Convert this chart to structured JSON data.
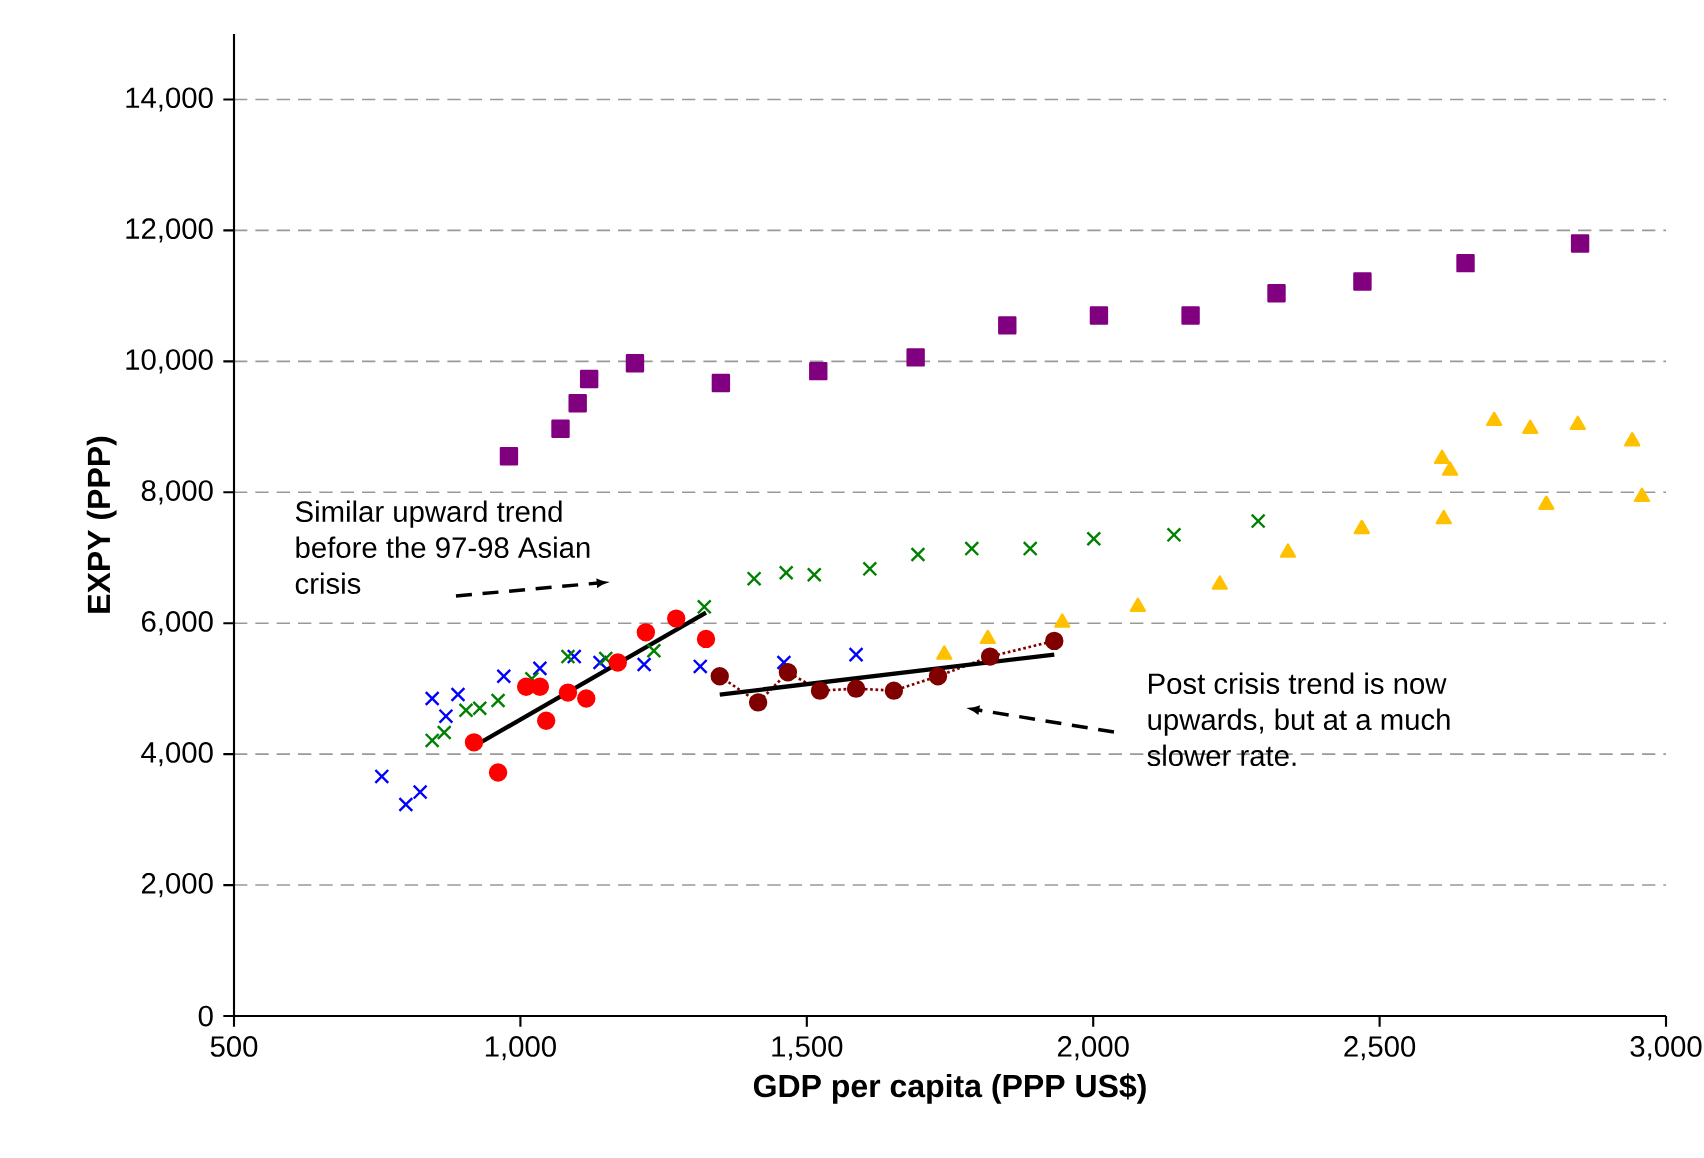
{
  "chart_data": {
    "type": "scatter",
    "xlabel": "GDP per capita (PPP US$)",
    "ylabel": "EXPY (PPP)",
    "xlim": [
      500,
      3000
    ],
    "ylim": [
      0,
      15000
    ],
    "xticks": [
      500,
      {
        "value": 1000,
        "label": "1,000"
      },
      {
        "value": 1500,
        "label": "1,500"
      },
      {
        "value": 2000,
        "label": "2,000"
      },
      {
        "value": 2500,
        "label": "2,500"
      },
      {
        "value": 3000,
        "label": "3,000"
      }
    ],
    "yticks": [
      0,
      {
        "value": 2000,
        "label": "2,000"
      },
      {
        "value": 4000,
        "label": "4,000"
      },
      {
        "value": 6000,
        "label": "6,000"
      },
      {
        "value": 8000,
        "label": "8,000"
      },
      {
        "value": 10000,
        "label": "10,000"
      },
      {
        "value": 12000,
        "label": "12,000"
      },
      {
        "value": 14000,
        "label": "14,000"
      }
    ],
    "grid": "y",
    "series": [
      {
        "marker": "cross",
        "color": "#0000ff",
        "x": [
          758,
          800,
          825,
          846,
          870,
          891,
          971,
          1034,
          1094,
          1139,
          1216,
          1314,
          1460,
          1586
        ],
        "values": [
          3660,
          3230,
          3420,
          4850,
          4580,
          4910,
          5190,
          5310,
          5490,
          5400,
          5370,
          5340,
          5400,
          5520
        ]
      },
      {
        "marker": "cross",
        "color": "#008000",
        "x": [
          846,
          867,
          905,
          929,
          961,
          1020,
          1083,
          1149,
          1233,
          1321,
          1408,
          1464,
          1513,
          1610,
          1694,
          1788,
          1890,
          2001,
          2141,
          2288
        ],
        "values": [
          4210,
          4330,
          4670,
          4700,
          4820,
          5150,
          5490,
          5460,
          5580,
          6250,
          6680,
          6770,
          6740,
          6830,
          7050,
          7140,
          7140,
          7290,
          7350,
          7560
        ]
      },
      {
        "marker": "circle",
        "color": "#ff0000",
        "x": [
          919,
          961,
          1010,
          1034,
          1045,
          1083,
          1115,
          1170,
          1219,
          1272,
          1324
        ],
        "values": [
          4180,
          3720,
          5030,
          5030,
          4510,
          4940,
          4850,
          5400,
          5860,
          6070,
          5760
        ]
      },
      {
        "type": "line",
        "marker": "circle",
        "line_style": "dotted",
        "color": "#800000",
        "x": [
          1348,
          1415,
          1467,
          1523,
          1586,
          1652,
          1729,
          1820,
          1932
        ],
        "values": [
          5190,
          4790,
          5250,
          4970,
          5000,
          4970,
          5190,
          5490,
          5730
        ]
      },
      {
        "marker": "square",
        "color": "#800080",
        "x": [
          980,
          1070,
          1100,
          1120,
          1200,
          1350,
          1520,
          1690,
          1850,
          2010,
          2170,
          2320,
          2470,
          2650,
          2850
        ],
        "values": [
          8550,
          8970,
          9360,
          9730,
          9970,
          9670,
          9850,
          10060,
          10550,
          10700,
          10700,
          11040,
          11220,
          11500,
          11800
        ]
      },
      {
        "marker": "triangle",
        "color": "#ffc000",
        "x": [
          1740,
          1816,
          1946,
          2078,
          2221,
          2340,
          2469,
          2612,
          2609,
          2623,
          2700,
          2763,
          2846,
          2941,
          2791,
          2958
        ],
        "values": [
          5520,
          5760,
          6010,
          6250,
          6590,
          7080,
          7440,
          7590,
          8510,
          8330,
          9090,
          8970,
          9030,
          8780,
          7810,
          7930
        ]
      },
      {
        "type": "line",
        "marker": "none",
        "line_style": "solid",
        "color": "#000000",
        "x": [
          919,
          1324
        ],
        "values": [
          4120,
          6160
        ]
      },
      {
        "type": "line",
        "marker": "none",
        "line_style": "solid",
        "color": "#000000",
        "x": [
          1348,
          1932
        ],
        "values": [
          4910,
          5520
        ]
      }
    ],
    "annotations": [
      "Similar upward trend before the 97-98 Asian crisis",
      "Post crisis trend is now upwards, but at a much slower rate."
    ]
  }
}
